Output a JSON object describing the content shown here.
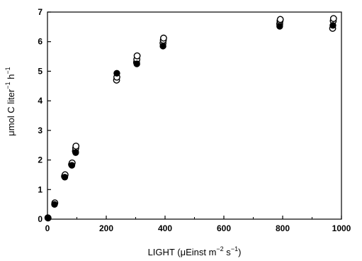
{
  "chart_data": {
    "type": "scatter",
    "xlabel_parts": [
      "LIGHT (",
      "μ",
      "Einst m",
      "−2",
      " s",
      "−1",
      ")"
    ],
    "ylabel_parts": [
      "μ",
      "mol C liter",
      "−1",
      " h",
      "−1"
    ],
    "xlim": [
      0,
      1000
    ],
    "ylim": [
      0,
      7
    ],
    "x_ticks": [
      0,
      200,
      400,
      600,
      800,
      1000
    ],
    "y_ticks": [
      0,
      1,
      2,
      3,
      4,
      5,
      6,
      7
    ],
    "grid": false,
    "series": [
      {
        "marker": "open-circle",
        "points": [
          [
            2,
            0.04
          ],
          [
            25,
            0.55
          ],
          [
            58,
            1.45
          ],
          [
            60,
            1.5
          ],
          [
            82,
            1.85
          ],
          [
            84,
            1.9
          ],
          [
            95,
            2.3
          ],
          [
            96,
            2.4
          ],
          [
            97,
            2.47
          ],
          [
            235,
            4.7
          ],
          [
            236,
            4.8
          ],
          [
            303,
            5.3
          ],
          [
            304,
            5.4
          ],
          [
            305,
            5.52
          ],
          [
            393,
            5.95
          ],
          [
            394,
            6.05
          ],
          [
            395,
            6.12
          ],
          [
            790,
            6.6
          ],
          [
            791,
            6.7
          ],
          [
            792,
            6.75
          ],
          [
            970,
            6.45
          ],
          [
            972,
            6.7
          ],
          [
            973,
            6.78
          ]
        ]
      },
      {
        "marker": "filled-circle",
        "points": [
          [
            1,
            0.05
          ],
          [
            24,
            0.5
          ],
          [
            59,
            1.42
          ],
          [
            83,
            1.82
          ],
          [
            96,
            2.25
          ],
          [
            236,
            4.93
          ],
          [
            304,
            5.25
          ],
          [
            393,
            5.85
          ],
          [
            790,
            6.52
          ],
          [
            971,
            6.55
          ]
        ]
      }
    ]
  }
}
